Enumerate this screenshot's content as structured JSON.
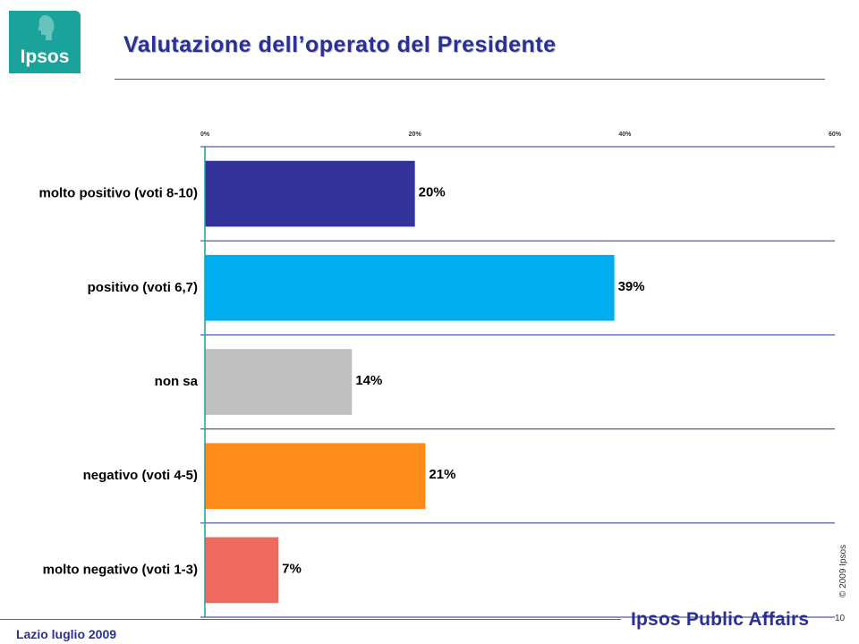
{
  "header": {
    "logo_text": "Ipsos",
    "title": "Valutazione dell’operato del Presidente"
  },
  "chart_data": {
    "type": "bar",
    "orientation": "horizontal",
    "categories": [
      "molto positivo (voti 8-10)",
      "positivo (voti 6,7)",
      "non sa",
      "negativo (voti 4-5)",
      "molto negativo (voti 1-3)"
    ],
    "values": [
      20,
      39,
      14,
      21,
      7
    ],
    "data_labels": [
      "20%",
      "39%",
      "14%",
      "21%",
      "7%"
    ],
    "colors": [
      "#333399",
      "#00aeef",
      "#c0c0c0",
      "#ff8c1a",
      "#ee6a5f"
    ],
    "x_ticks": [
      0,
      20,
      40,
      60
    ],
    "x_tick_labels": [
      "0%",
      "20%",
      "40%",
      "60%"
    ],
    "xlim": [
      0,
      60
    ],
    "grid": true,
    "legend": "none"
  },
  "side": {
    "copyright": "© 2009 Ipsos",
    "page_number": "10"
  },
  "footer": {
    "brand": "Ipsos Public Affairs",
    "study": "Lazio luglio 2009"
  },
  "colors": {
    "brand_blue": "#2b3192",
    "logo_teal": "#1aa39a"
  }
}
